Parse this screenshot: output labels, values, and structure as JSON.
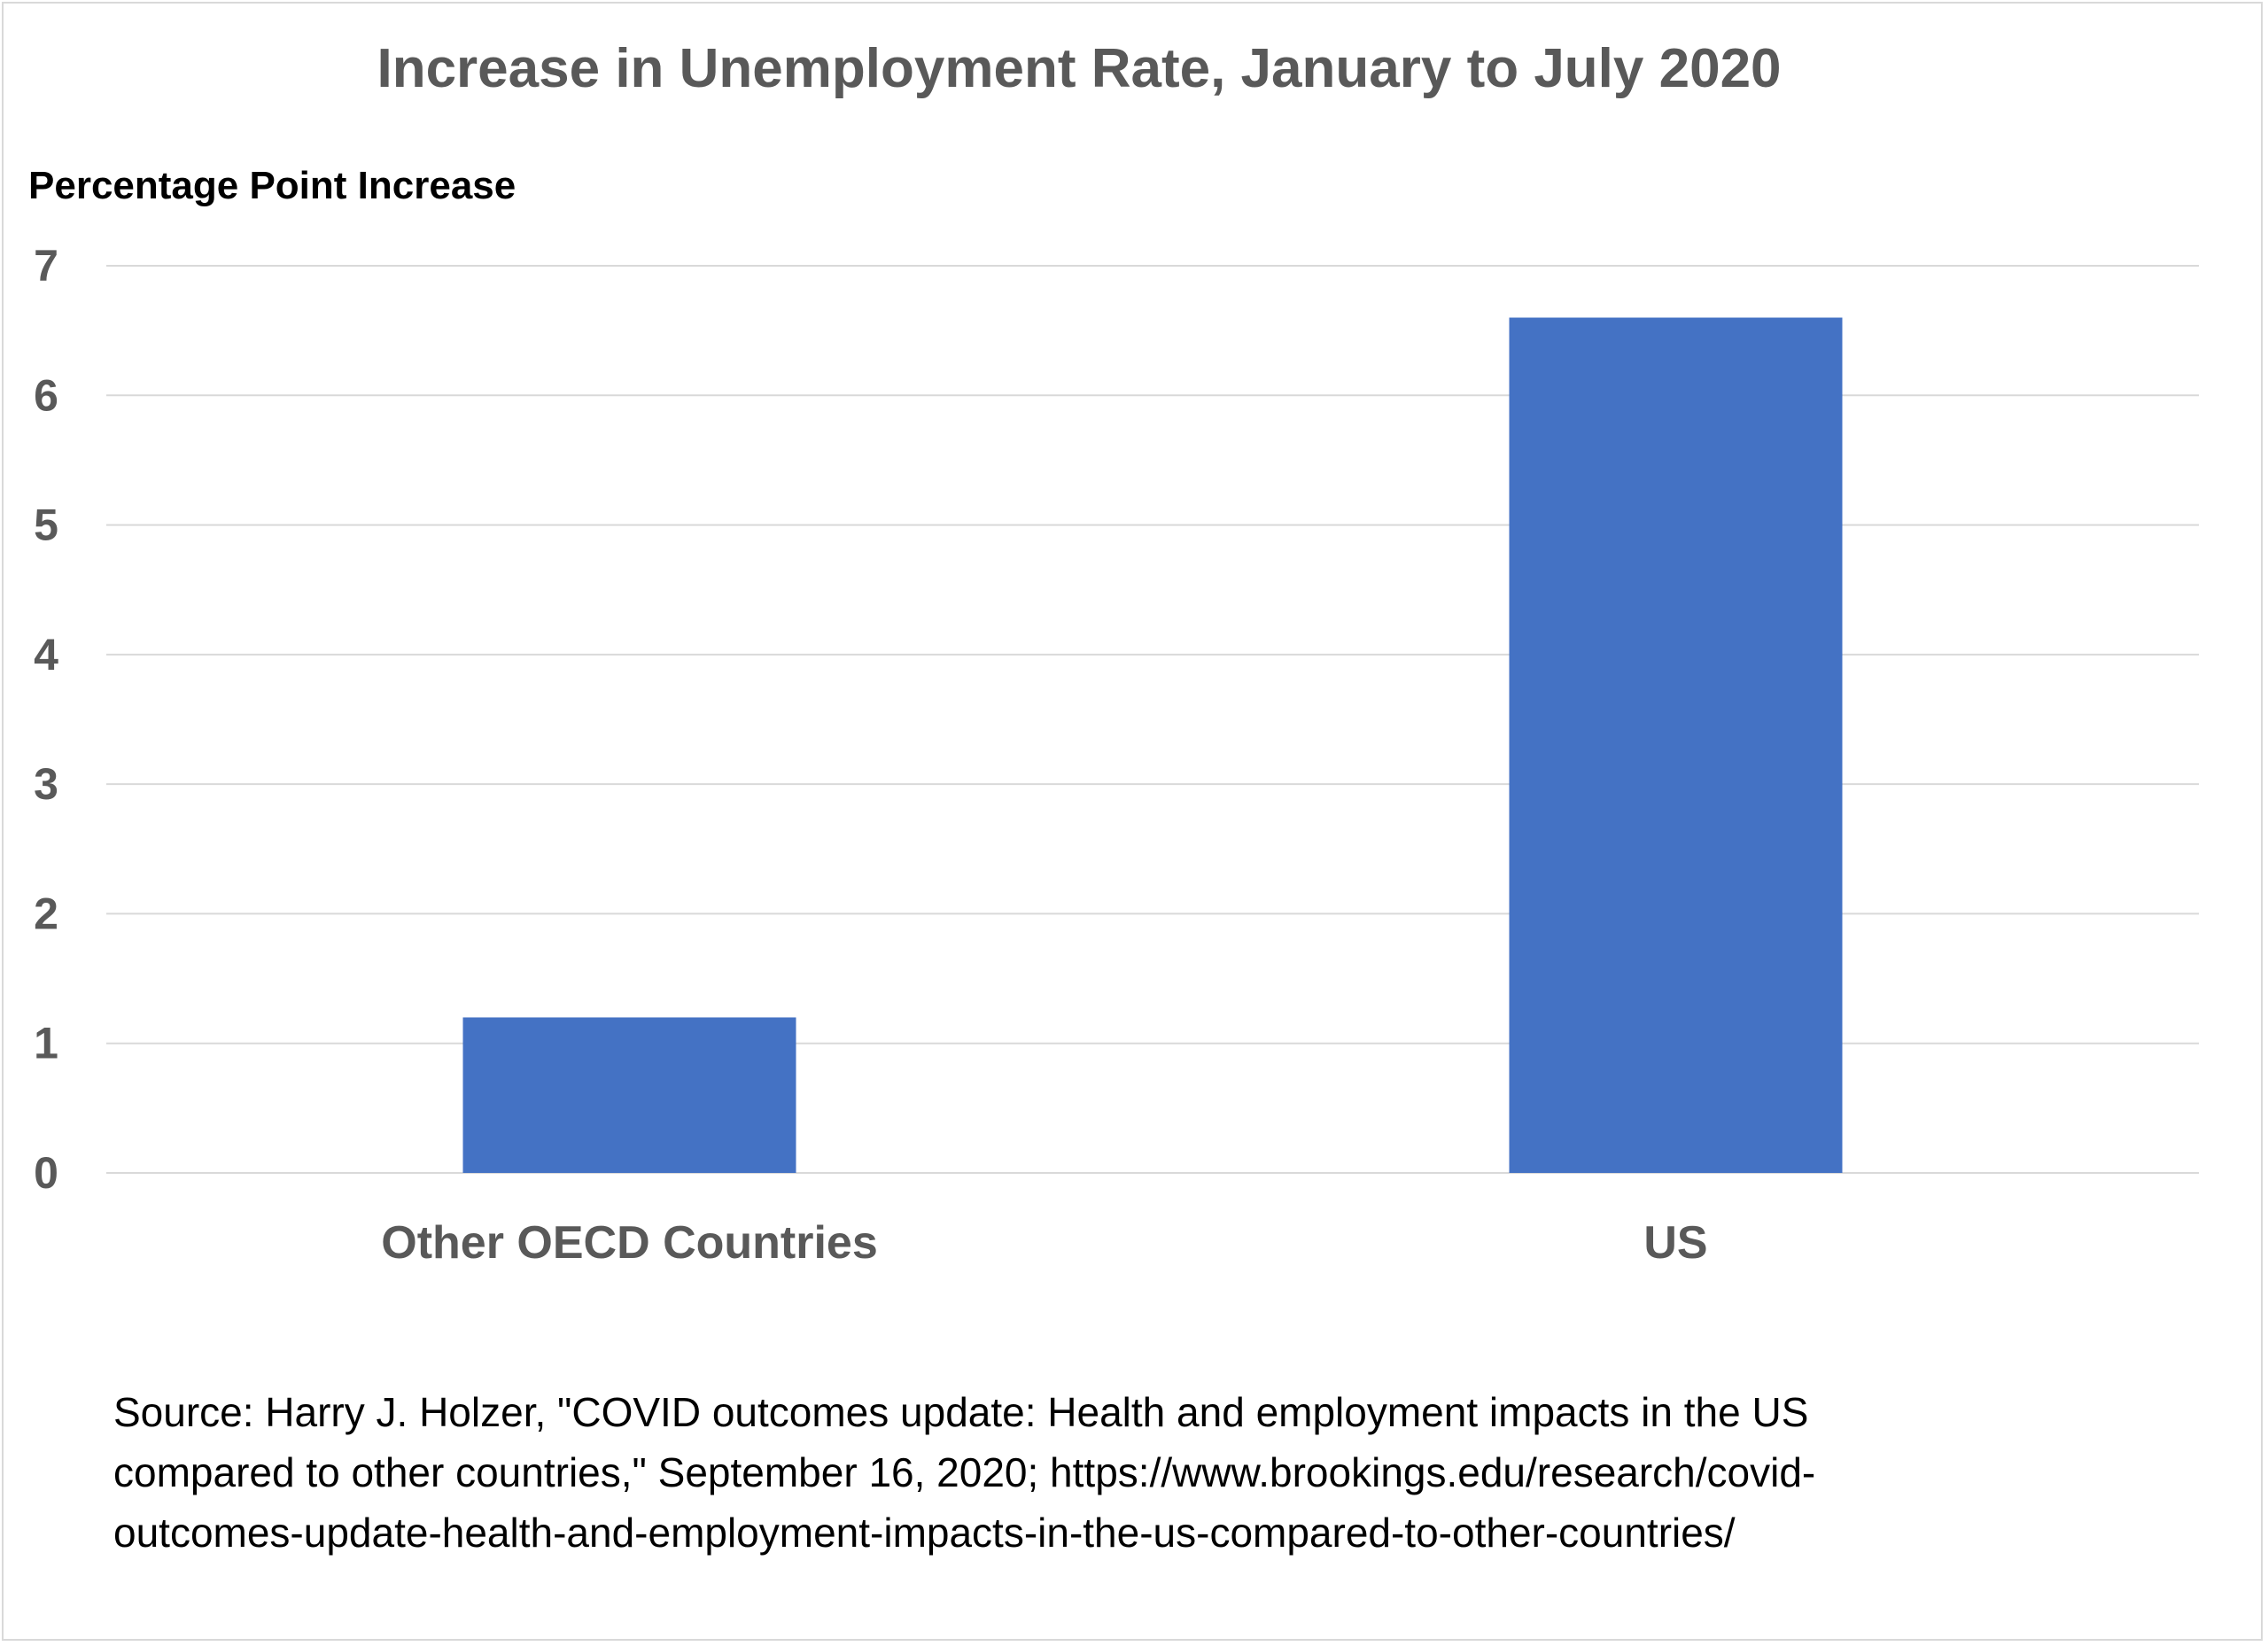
{
  "chart_data": {
    "type": "bar",
    "title": "Increase in Unemployment Rate, January to July 2020",
    "ylabel": "Percentage Point Increase",
    "xlabel": "",
    "categories": [
      "Other OECD Countries",
      "US"
    ],
    "values": [
      1.2,
      6.6
    ],
    "ylim": [
      0,
      7
    ],
    "yticks": [
      0,
      1,
      2,
      3,
      4,
      5,
      6,
      7
    ],
    "grid": true,
    "legend": "none",
    "bar_color": "#4472c4",
    "grid_color": "#d9d9d9"
  },
  "source": {
    "lines": [
      "Source: Harry J. Holzer, \"COVID outcomes update: Health and employment impacts in the US",
      "compared to other countries,\" September 16, 2020; https://www.brookings.edu/research/covid-",
      "outcomes-update-health-and-employment-impacts-in-the-us-compared-to-other-countries/"
    ]
  }
}
